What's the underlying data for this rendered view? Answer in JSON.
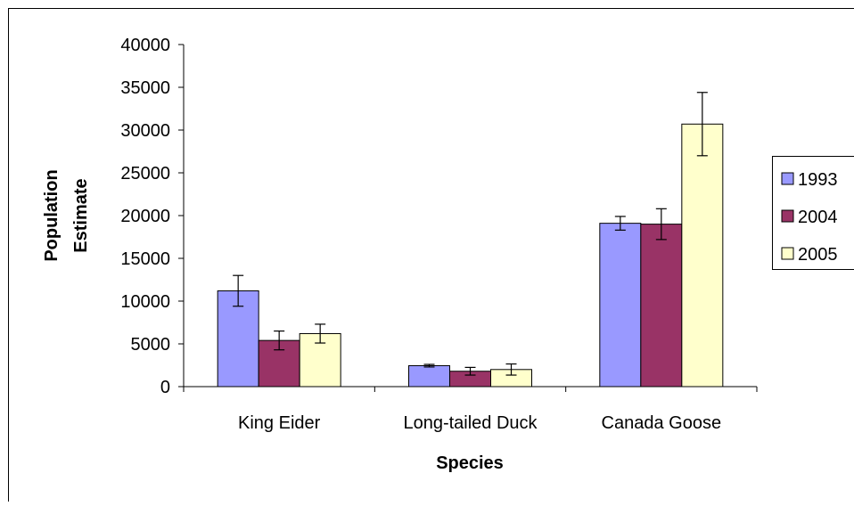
{
  "chart_data": {
    "type": "bar",
    "title": "",
    "xlabel": "Species",
    "ylabel_lines": [
      "Population",
      "Estimate"
    ],
    "categories": [
      "King Eider",
      "Long-tailed Duck",
      "Canada Goose"
    ],
    "ylim": [
      0,
      40000
    ],
    "yticks": [
      0,
      5000,
      10000,
      15000,
      20000,
      25000,
      30000,
      35000,
      40000
    ],
    "ytick_labels": [
      "0",
      "5000",
      "10000",
      "15000",
      "20000",
      "25000",
      "30000",
      "35000",
      "40000"
    ],
    "grid": false,
    "legend_position": "right",
    "series": [
      {
        "name": "1993",
        "color": "#9999ff",
        "values": [
          11200,
          2450,
          19100
        ],
        "errors": [
          1800,
          150,
          800
        ]
      },
      {
        "name": "2004",
        "color": "#993366",
        "values": [
          5400,
          1800,
          19000
        ],
        "errors": [
          1100,
          450,
          1800
        ]
      },
      {
        "name": "2005",
        "color": "#ffffcc",
        "values": [
          6200,
          2000,
          30700
        ],
        "errors": [
          1100,
          650,
          3700
        ]
      }
    ]
  }
}
